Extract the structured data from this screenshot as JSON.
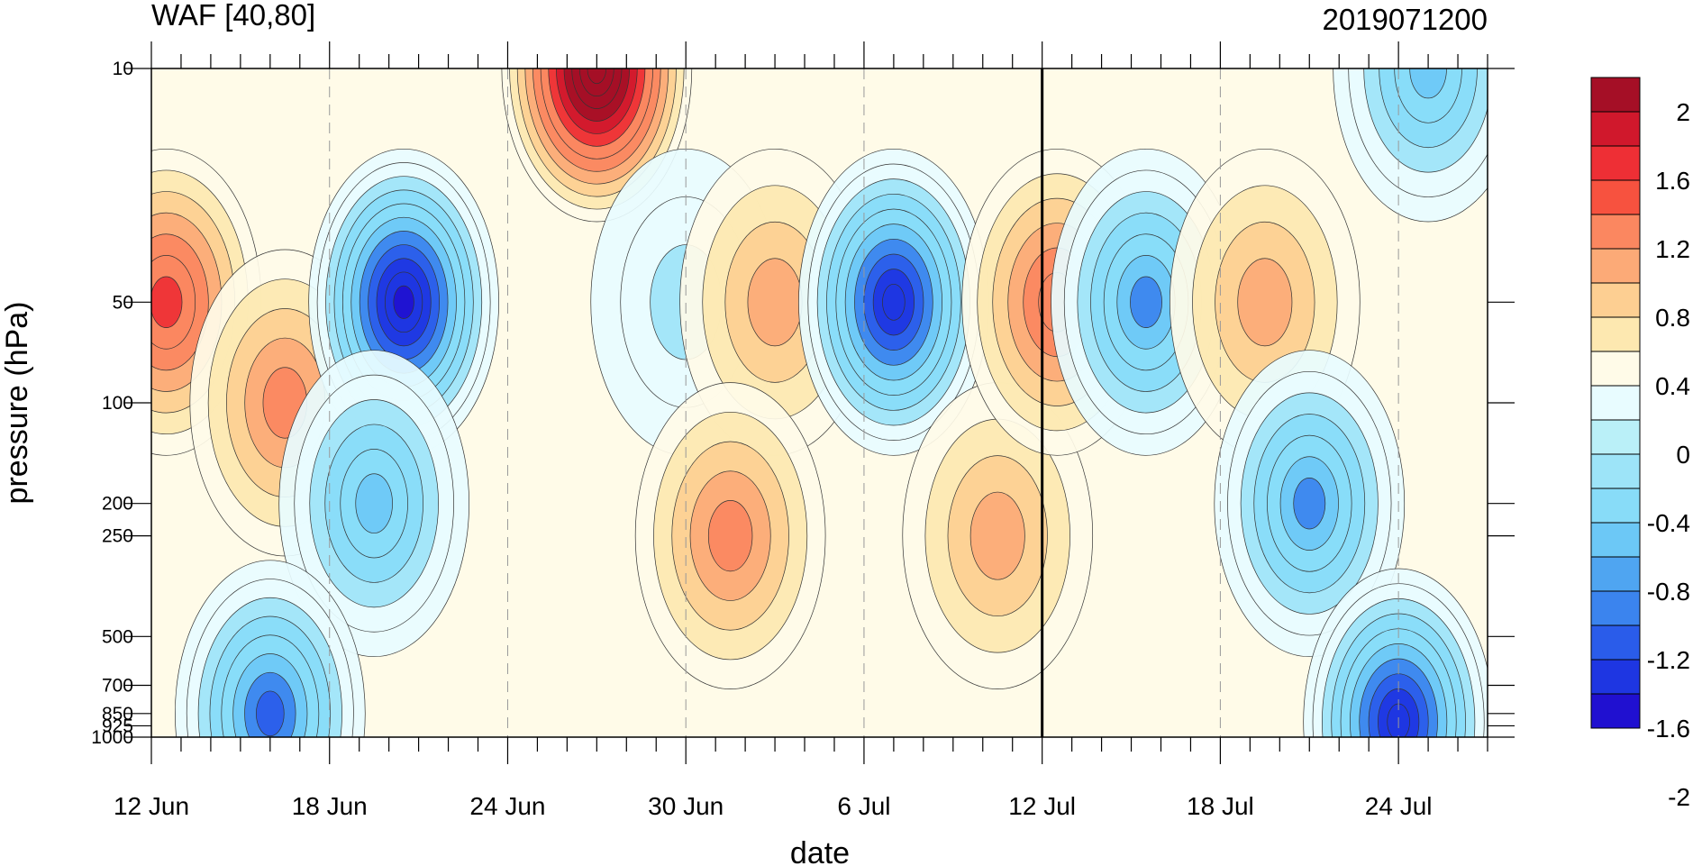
{
  "chart_data": {
    "type": "heatmap",
    "title": "WAF [40,80]",
    "subtitle": "2019071200",
    "xlabel": "date",
    "ylabel": "pressure (hPa)",
    "x_ticks": [
      "12 Jun",
      "18 Jun",
      "24 Jun",
      "30 Jun",
      "6 Jul",
      "12 Jul",
      "18 Jul",
      "24 Jul"
    ],
    "x_range": [
      "12 Jun",
      "27 Jul"
    ],
    "y_scale": "log",
    "y_reversed": true,
    "y_ticks": [
      10,
      50,
      100,
      200,
      250,
      500,
      700,
      850,
      925,
      1000
    ],
    "y_range": [
      1000,
      10
    ],
    "colorbar": {
      "labels": [
        "2",
        "1.6",
        "1.2",
        "0.8",
        "0.4",
        "0",
        "-0.4",
        "-0.8",
        "-1.2",
        "-1.6",
        "-2"
      ],
      "colors": [
        "#a50f26",
        "#d0182c",
        "#ee2f35",
        "#f7523f",
        "#fb8760",
        "#fcaa77",
        "#fdcf92",
        "#fde8b0",
        "#fffbe8",
        "#e8fcff",
        "#baf0f8",
        "#9de4f8",
        "#88dcf8",
        "#6cc8f6",
        "#4fa5f1",
        "#3b84ee",
        "#2a5cea",
        "#1e36e2",
        "#2010d0"
      ]
    },
    "vertical_line_at": "12 Jul",
    "grid": "dashed vertical lines at date ticks",
    "features": [
      {
        "t": 0.5,
        "p": 50,
        "value": 1.2
      },
      {
        "t": 4.5,
        "p": 100,
        "value": 0.8
      },
      {
        "t": 8.5,
        "p": 50,
        "value": -2
      },
      {
        "t": 7.5,
        "p": 200,
        "value": -1.0
      },
      {
        "t": 4.0,
        "p": 850,
        "value": -1.4
      },
      {
        "t": 15.0,
        "p": 10,
        "value": 2.2
      },
      {
        "t": 18.0,
        "p": 50,
        "value": -0.4
      },
      {
        "t": 21.0,
        "p": 50,
        "value": 0.6
      },
      {
        "t": 19.5,
        "p": 250,
        "value": 0.8
      },
      {
        "t": 25.0,
        "p": 50,
        "value": -1.7
      },
      {
        "t": 28.5,
        "p": 250,
        "value": 0.7
      },
      {
        "t": 30.5,
        "p": 50,
        "value": 1.0
      },
      {
        "t": 33.5,
        "p": 50,
        "value": -1.2
      },
      {
        "t": 37.5,
        "p": 50,
        "value": 0.6
      },
      {
        "t": 39.0,
        "p": 200,
        "value": -1.2
      },
      {
        "t": 42.0,
        "p": 900,
        "value": -1.8
      },
      {
        "t": 43.0,
        "p": 10,
        "value": -0.9
      }
    ]
  }
}
